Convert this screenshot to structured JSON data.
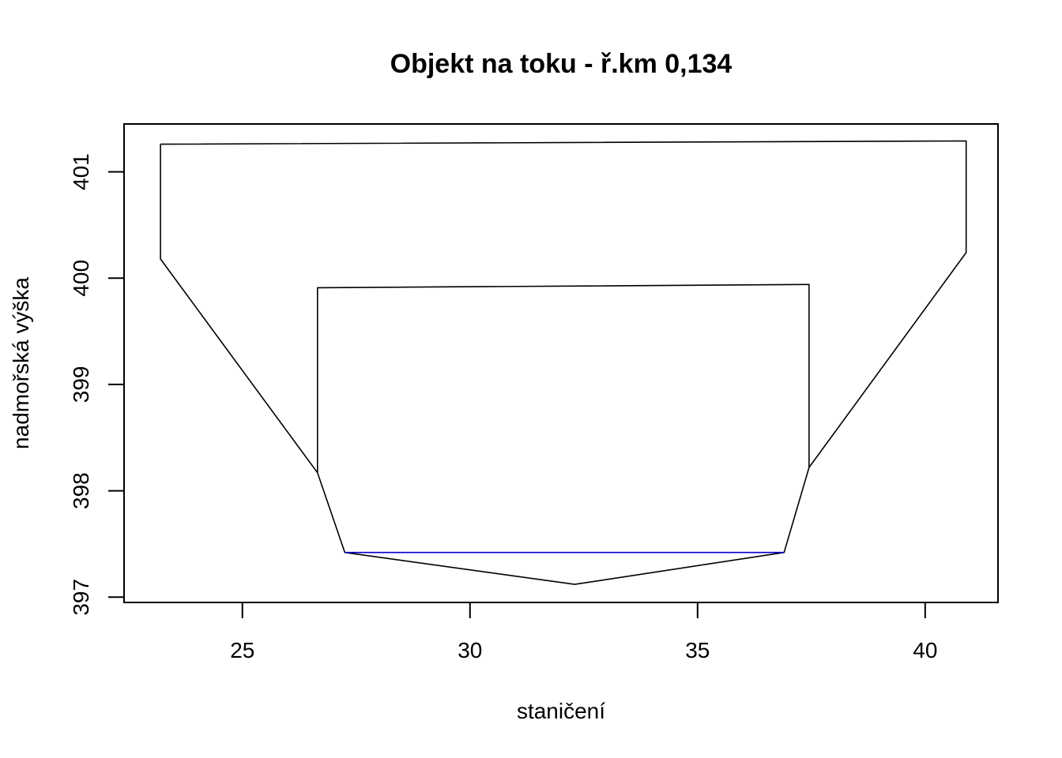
{
  "chart_data": {
    "type": "line",
    "title": "Objekt na toku - ř.km 0,134",
    "xlabel": "staničení",
    "ylabel": "nadmořská výška",
    "xlim": [
      22.4,
      41.6
    ],
    "ylim": [
      396.95,
      401.45
    ],
    "xticks": [
      25,
      30,
      35,
      40
    ],
    "yticks": [
      397,
      398,
      399,
      400,
      401
    ],
    "grid": false,
    "legend": "none",
    "series": [
      {
        "color": "#000000",
        "x": [
          23.2,
          23.2,
          26.65,
          27.25,
          32.3,
          36.9,
          37.45,
          40.9,
          40.9,
          23.2
        ],
        "y": [
          401.26,
          400.18,
          398.17,
          397.42,
          397.12,
          397.42,
          398.22,
          400.24,
          401.29,
          401.26
        ]
      },
      {
        "color": "#000000",
        "x": [
          26.65,
          26.65,
          37.45,
          37.45
        ],
        "y": [
          398.17,
          399.91,
          399.94,
          398.22
        ]
      },
      {
        "color": "#0000CC",
        "x": [
          27.25,
          36.9
        ],
        "y": [
          397.42,
          397.42
        ]
      }
    ]
  }
}
